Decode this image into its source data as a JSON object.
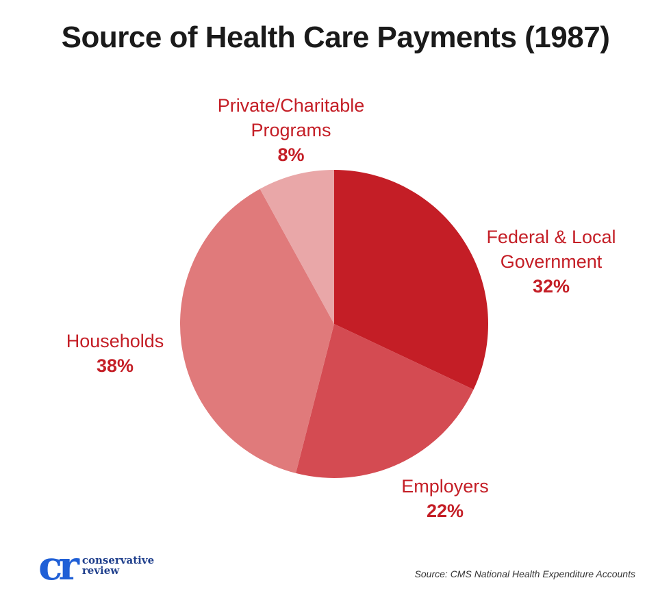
{
  "chart_data": {
    "type": "pie",
    "title": "Source of Health Care Payments (1987)",
    "slices": [
      {
        "name": "Federal & Local\nGovernment",
        "value": 32,
        "label": "32%",
        "color": "#c41e26"
      },
      {
        "name": "Employers",
        "value": 22,
        "label": "22%",
        "color": "#d44b52"
      },
      {
        "name": "Households",
        "value": 38,
        "label": "38%",
        "color": "#e07a7b"
      },
      {
        "name": "Private/Charitable\nPrograms",
        "value": 8,
        "label": "8%",
        "color": "#e9a7a8"
      }
    ],
    "start_angle_deg": 0,
    "direction": "clockwise"
  },
  "branding": {
    "logo_mark": "cr",
    "logo_line1": "conservative",
    "logo_line2": "review",
    "logo_color": "#1f5fd6"
  },
  "source": "Source: CMS National Health Expenditure Accounts"
}
